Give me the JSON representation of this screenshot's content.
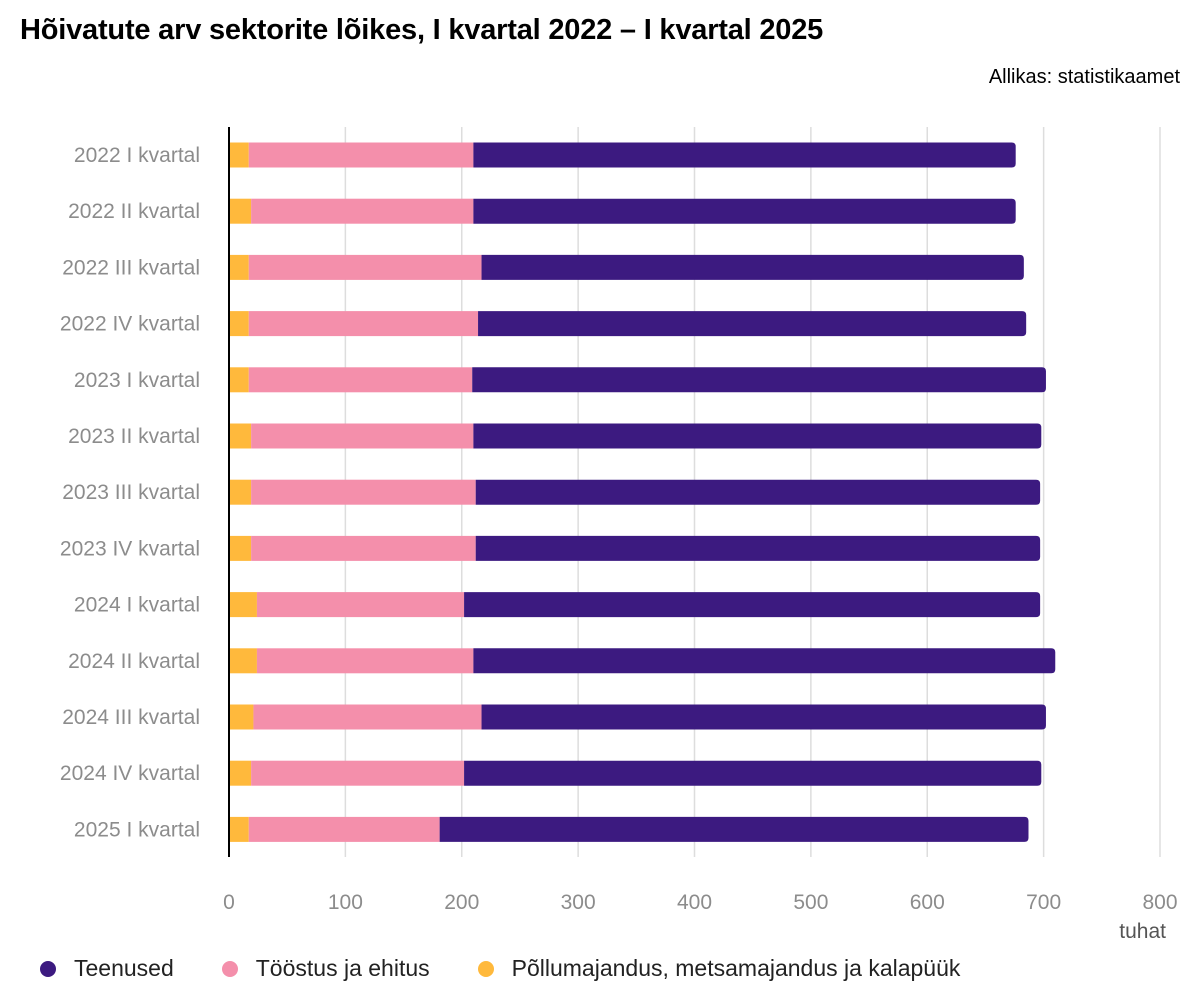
{
  "title": "Hõivatute arv sektorite lõikes, I kvartal 2022 – I kvartal 2025",
  "source": "Allikas: statistikaamet",
  "chart_data": {
    "type": "bar",
    "orientation": "horizontal",
    "stacked": true,
    "categories": [
      "2022 I kvartal",
      "2022 II kvartal",
      "2022 III kvartal",
      "2022 IV kvartal",
      "2023 I kvartal",
      "2023 II kvartal",
      "2023 III kvartal",
      "2023 IV kvartal",
      "2024 I kvartal",
      "2024 II kvartal",
      "2024 III kvartal",
      "2024 IV kvartal",
      "2025 I kvartal"
    ],
    "series": [
      {
        "name": "Põllumajandus, metsamajandus ja kalapüük",
        "color": "#ffb93c",
        "values": [
          17,
          19,
          17,
          17,
          17,
          19,
          19,
          19,
          24,
          24,
          21,
          19,
          17
        ]
      },
      {
        "name": "Tööstus ja ehitus",
        "color": "#f48fab",
        "values": [
          193,
          191,
          200,
          197,
          192,
          191,
          193,
          193,
          178,
          186,
          196,
          183,
          164
        ]
      },
      {
        "name": "Teenused",
        "color": "#3c1a80",
        "values": [
          466,
          466,
          466,
          471,
          493,
          488,
          485,
          485,
          495,
          500,
          485,
          496,
          506
        ]
      }
    ],
    "xlim": [
      0,
      800
    ],
    "xticks": [
      0,
      100,
      200,
      300,
      400,
      500,
      600,
      700,
      800
    ],
    "xunit": "tuhat",
    "grid": true,
    "legend_position": "bottom",
    "legend_order": [
      "Teenused",
      "Tööstus ja ehitus",
      "Põllumajandus, metsamajandus ja kalapüük"
    ]
  }
}
